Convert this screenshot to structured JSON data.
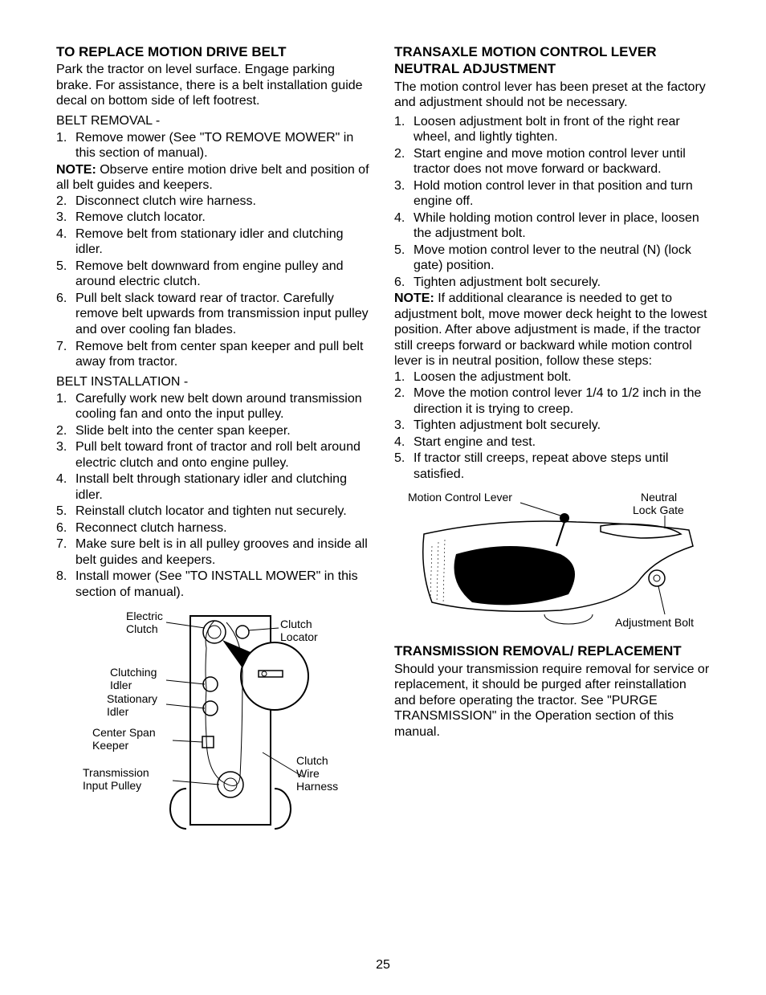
{
  "page_number": "25",
  "colors": {
    "text": "#000000",
    "bg": "#ffffff",
    "stroke": "#000000",
    "fill_dark": "#000000"
  },
  "left": {
    "h1": "TO REPLACE MOTION DRIVE BELT",
    "p1": "Park the tractor on level surface. Engage parking brake. For assistance, there is a belt installation guide decal on bottom side of left footrest.",
    "removal_title": "BELT REMOVAL -",
    "removal_1": "Remove mower (See \"TO REMOVE MOWER\" in this section of manual).",
    "removal_note_lbl": "NOTE:",
    "removal_note": " Observe entire motion drive belt and position of all belt guides and keepers.",
    "removal_2": "Disconnect clutch wire harness.",
    "removal_3": "Remove clutch locator.",
    "removal_4": "Remove belt from stationary idler and clutching idler.",
    "removal_5": "Remove belt downward from engine pulley and around electric clutch.",
    "removal_6": "Pull belt slack toward rear of tractor. Carefully remove belt upwards from transmission input pulley and over cooling fan blades.",
    "removal_7": "Remove belt from center span keeper and pull belt away from tractor.",
    "install_title": "BELT INSTALLATION -",
    "install_1": "Carefully work new belt down around transmission cooling fan and onto the input pulley.",
    "install_2": "Slide belt into the center span keeper.",
    "install_3": "Pull belt toward front of tractor and roll belt around electric clutch and onto engine pulley.",
    "install_4": "Install belt through stationary idler and clutching idler.",
    "install_5": "Reinstall clutch locator and tighten nut securely.",
    "install_6": "Reconnect clutch harness.",
    "install_7": "Make sure belt is in all pulley grooves and inside all belt guides and keepers.",
    "install_8": "Install mower (See \"TO INSTALL MOWER\" in this section of manual).",
    "fig1": {
      "electric_clutch": "Electric Clutch",
      "clutch_locator": "Clutch Locator",
      "clutching_idler": "Clutching Idler",
      "stationary_idler": "Stationary Idler",
      "center_span_keeper": "Center Span Keeper",
      "transmission_input_pulley": "Transmission Input Pulley",
      "clutch_wire_harness": "Clutch Wire Harness"
    }
  },
  "right": {
    "h1": "TRANSAXLE MOTION CONTROL LEVER NEUTRAL ADJUSTMENT",
    "p1": "The motion control lever has been preset at the factory and adjustment should not be necessary.",
    "s1": "Loosen adjustment bolt in front of the right rear wheel, and lightly tighten.",
    "s2": "Start engine and move motion control lever until tractor does not move forward or backward.",
    "s3": "Hold motion control lever in that position and turn engine off.",
    "s4": "While holding motion control lever in place, loosen the adjustment bolt.",
    "s5": "Move motion control lever to the neutral (N) (lock gate) position.",
    "s6": "Tighten adjustment bolt securely.",
    "note_lbl": "NOTE:",
    "note_body": " If additional clearance is needed to get to adjustment bolt, move mower deck height to the lowest position. After above adjustment is made, if the tractor still creeps forward or backward while motion control lever is in neutral position, follow these steps:",
    "t1": "Loosen the adjustment bolt.",
    "t2": "Move the motion control lever 1/4 to 1/2 inch in the direction it is trying to creep.",
    "t3": "Tighten adjustment bolt securely.",
    "t4": "Start engine and test.",
    "t5": "If tractor still creeps, repeat above steps until satisfied.",
    "fig2": {
      "motion_control_lever": "Motion Control Lever",
      "neutral_lock_gate": "Neutral Lock Gate",
      "adjustment_bolt": "Adjustment Bolt"
    },
    "h2": "TRANSMISSION REMOVAL/ REPLACEMENT",
    "p2": "Should your transmission require removal for service or replacement, it should be purged after reinstallation and before operating the tractor. See \"PURGE TRANSMISSION\" in the Operation section of this manual."
  }
}
